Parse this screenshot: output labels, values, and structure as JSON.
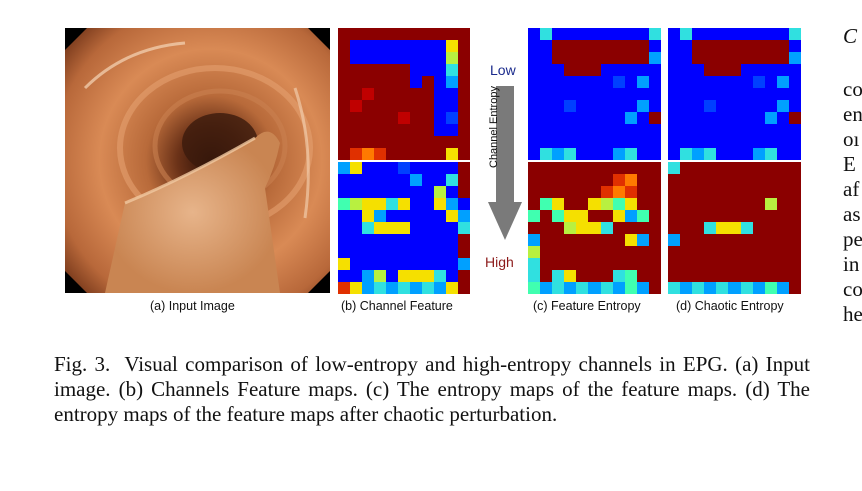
{
  "figure": {
    "subcaptions": {
      "a": "(a) Input Image",
      "b": "(b) Channel Feature",
      "c": "(c) Feature Entropy",
      "d": "(d) Chaotic Entropy"
    },
    "arrow": {
      "axis_label": "Channel Entropy",
      "low": "Low",
      "high": "High"
    },
    "colors": {
      "low_label": "#1a2a8c",
      "high_label": "#8c1a1a",
      "arrow": "#7a7a7a"
    }
  },
  "caption": {
    "lead": "Fig. 3.",
    "text": "Visual comparison of low-entropy and high-entropy channels in EPG. (a) Input image. (b) Channels Feature maps. (c) The entropy maps of the feature maps. (d) The entropy maps of the feature maps after chaotic perturbation."
  },
  "right_column_fragments": [
    "C",
    "co",
    "en",
    "oı",
    "E",
    "af",
    "as",
    "pe",
    "in",
    "co",
    "he"
  ]
}
